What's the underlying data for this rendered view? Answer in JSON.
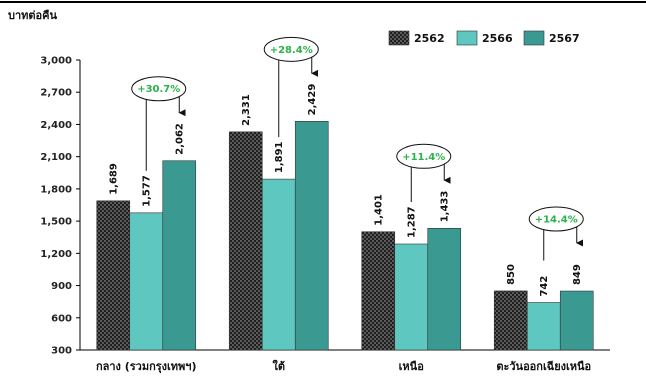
{
  "chart_data": {
    "type": "bar",
    "ylabel": "บาทต่อคืน",
    "ylim": [
      300,
      3000
    ],
    "yticks": [
      300,
      600,
      900,
      1200,
      1500,
      1800,
      2100,
      2400,
      2700,
      3000
    ],
    "yticklabels": [
      "300",
      "600",
      "900",
      "1,200",
      "1,500",
      "1,800",
      "2,100",
      "2,400",
      "2,700",
      "3,000"
    ],
    "categories": [
      "กลาง (รวมกรุงเทพฯ)",
      "ใต้",
      "เหนือ",
      "ตะวันออกเฉียงเหนือ"
    ],
    "series": [
      {
        "name": "2562",
        "values": [
          1689,
          2331,
          1401,
          850
        ],
        "labels": [
          "1,689",
          "2,331",
          "1,401",
          "850"
        ],
        "color": "#3a3a3a"
      },
      {
        "name": "2566",
        "values": [
          1577,
          1891,
          1287,
          742
        ],
        "labels": [
          "1,577",
          "1,891",
          "1,287",
          "742"
        ],
        "color": "#5ec7c0"
      },
      {
        "name": "2567",
        "values": [
          2062,
          2429,
          1433,
          849
        ],
        "labels": [
          "2,062",
          "2,429",
          "1,433",
          "849"
        ],
        "color": "#3a9a92"
      }
    ],
    "annotations": [
      "+30.7%",
      "+28.4%",
      "+11.4%",
      "+14.4%"
    ],
    "annotation_color": "#2bb34a",
    "legend_position": "top-right",
    "grid": false
  }
}
